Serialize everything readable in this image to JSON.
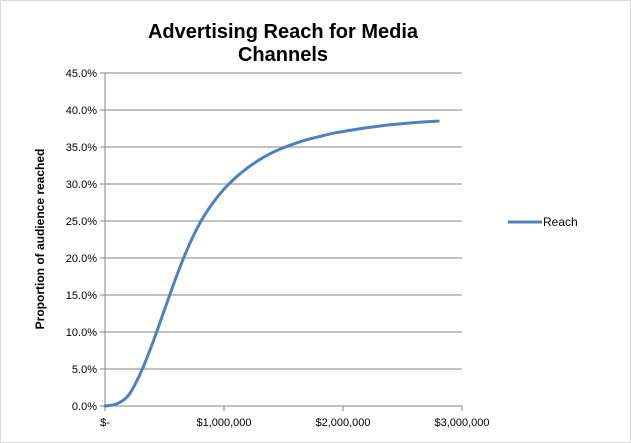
{
  "chart_data": {
    "type": "line",
    "title": "Advertising Reach for Media Channels",
    "xlabel": "",
    "ylabel": "Proportion of audience reached",
    "xlim": [
      0,
      3000000
    ],
    "ylim": [
      0,
      45
    ],
    "x_ticks": [
      {
        "value": 0,
        "label": "$-"
      },
      {
        "value": 1000000,
        "label": "$1,000,000"
      },
      {
        "value": 2000000,
        "label": "$2,000,000"
      },
      {
        "value": 3000000,
        "label": "$3,000,000"
      }
    ],
    "y_ticks": [
      {
        "value": 0,
        "label": "0.0%"
      },
      {
        "value": 5,
        "label": "5.0%"
      },
      {
        "value": 10,
        "label": "10.0%"
      },
      {
        "value": 15,
        "label": "15.0%"
      },
      {
        "value": 20,
        "label": "20.0%"
      },
      {
        "value": 25,
        "label": "25.0%"
      },
      {
        "value": 30,
        "label": "30.0%"
      },
      {
        "value": 35,
        "label": "35.0%"
      },
      {
        "value": 40,
        "label": "40.0%"
      },
      {
        "value": 45,
        "label": "45.0%"
      }
    ],
    "grid": true,
    "legend_position": "right",
    "series": [
      {
        "name": "Reach",
        "color": "#4f81bd",
        "x": [
          0,
          100000,
          200000,
          300000,
          400000,
          500000,
          600000,
          700000,
          800000,
          900000,
          1000000,
          1100000,
          1200000,
          1300000,
          1400000,
          1500000,
          1600000,
          1700000,
          1800000,
          1900000,
          2000000,
          2200000,
          2400000,
          2600000,
          2800000
        ],
        "y": [
          0.0,
          0.3,
          1.5,
          4.5,
          8.5,
          13.0,
          17.5,
          21.5,
          24.8,
          27.3,
          29.3,
          30.9,
          32.2,
          33.3,
          34.2,
          34.9,
          35.5,
          36.0,
          36.4,
          36.8,
          37.1,
          37.6,
          38.0,
          38.3,
          38.5
        ]
      }
    ]
  }
}
